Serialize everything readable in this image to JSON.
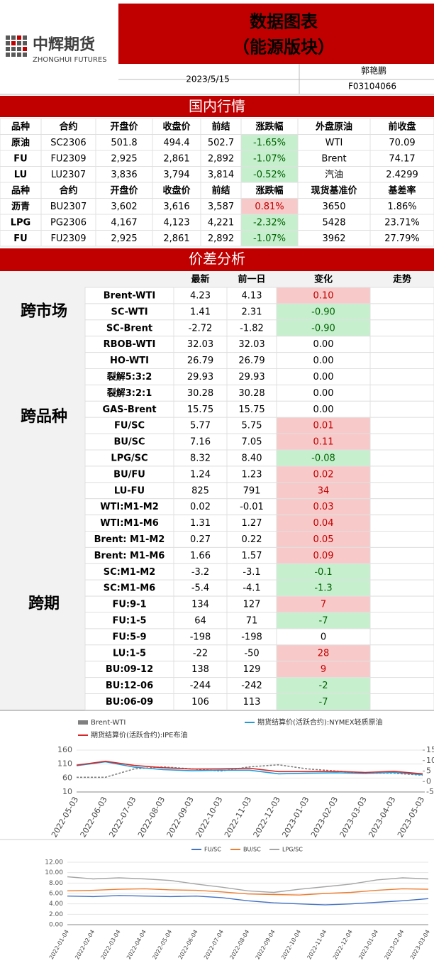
{
  "header": {
    "logo": "中辉期货",
    "logo_en": "ZHONGHUI FUTURES",
    "title": "数据图表",
    "subtitle": "（能源版块）",
    "date": "2023/5/15",
    "author": "郭艳鹏",
    "license": "F03104066"
  },
  "domestic": {
    "title": "国内行情",
    "rows": [
      [
        "品种",
        "合约",
        "开盘价",
        "收盘价",
        "前结",
        "涨跌幅",
        "外盘原油",
        "前收盘"
      ],
      [
        "原油",
        "SC2306",
        "501.8",
        "494.4",
        "502.7",
        "-1.65%",
        "WTI",
        "70.09"
      ],
      [
        "FU",
        "FU2309",
        "2,925",
        "2,861",
        "2,892",
        "-1.07%",
        "Brent",
        "74.17"
      ],
      [
        "LU",
        "LU2307",
        "3,836",
        "3,794",
        "3,814",
        "-0.52%",
        "汽油",
        "2.4299"
      ],
      [
        "品种",
        "合约",
        "开盘价",
        "收盘价",
        "前结",
        "涨跌幅",
        "现货基准价",
        "基差率"
      ],
      [
        "沥青",
        "BU2307",
        "3,602",
        "3,616",
        "3,587",
        "0.81%",
        "3650",
        "1.86%"
      ],
      [
        "LPG",
        "PG2306",
        "4,167",
        "4,123",
        "4,221",
        "-2.32%",
        "5428",
        "23.71%"
      ],
      [
        "FU",
        "FU2309",
        "2,925",
        "2,861",
        "2,892",
        "-1.07%",
        "3962",
        "27.79%"
      ]
    ]
  },
  "spread": {
    "title": "价差分析",
    "header": [
      "最新",
      "前一日",
      "变化",
      "走势"
    ],
    "groups": [
      {
        "label": "跨市场",
        "rows": [
          [
            "Brent-WTI",
            "4.23",
            "4.13",
            "0.10"
          ],
          [
            "SC-WTI",
            "1.41",
            "2.31",
            "-0.90"
          ],
          [
            "SC-Brent",
            "-2.72",
            "-1.82",
            "-0.90"
          ]
        ]
      },
      {
        "label": "跨品种",
        "rows": [
          [
            "RBOB-WTI",
            "32.03",
            "32.03",
            "0.00"
          ],
          [
            "HO-WTI",
            "26.79",
            "26.79",
            "0.00"
          ],
          [
            "裂解5:3:2",
            "29.93",
            "29.93",
            "0.00"
          ],
          [
            "裂解3:2:1",
            "30.28",
            "30.28",
            "0.00"
          ],
          [
            "GAS-Brent",
            "15.75",
            "15.75",
            "0.00"
          ],
          [
            "FU/SC",
            "5.77",
            "5.75",
            "0.01"
          ],
          [
            "BU/SC",
            "7.16",
            "7.05",
            "0.11"
          ],
          [
            "LPG/SC",
            "8.32",
            "8.40",
            "-0.08"
          ],
          [
            "BU/FU",
            "1.24",
            "1.23",
            "0.02"
          ],
          [
            "LU-FU",
            "825",
            "791",
            "34"
          ]
        ]
      },
      {
        "label": "跨期",
        "rows": [
          [
            "WTI:M1-M2",
            "0.02",
            "-0.01",
            "0.03"
          ],
          [
            "WTI:M1-M6",
            "1.31",
            "1.27",
            "0.04"
          ],
          [
            "Brent: M1-M2",
            "0.27",
            "0.22",
            "0.05"
          ],
          [
            "Brent: M1-M6",
            "1.66",
            "1.57",
            "0.09"
          ],
          [
            "SC:M1-M2",
            "-3.2",
            "-3.1",
            "-0.1"
          ],
          [
            "SC:M1-M6",
            "-5.4",
            "-4.1",
            "-1.3"
          ],
          [
            "FU:9-1",
            "134",
            "127",
            "7"
          ],
          [
            "FU:1-5",
            "64",
            "71",
            "-7"
          ],
          [
            "FU:5-9",
            "-198",
            "-198",
            "0"
          ],
          [
            "LU:1-5",
            "-22",
            "-50",
            "28"
          ],
          [
            "BU:09-12",
            "138",
            "129",
            "9"
          ],
          [
            "BU:12-06",
            "-244",
            "-242",
            "-2"
          ],
          [
            "BU:06-09",
            "106",
            "113",
            "-7"
          ]
        ]
      }
    ]
  },
  "chart_data": [
    {
      "type": "line",
      "categories": [
        "2022-05-03",
        "2022-06-03",
        "2022-07-03",
        "2022-08-03",
        "2022-09-03",
        "2022-10-03",
        "2022-11-03",
        "2022-12-03",
        "2023-01-03",
        "2023-02-03",
        "2023-03-03",
        "2023-04-03",
        "2023-05-03"
      ],
      "series": [
        {
          "name": "Brent-WTI",
          "color": "#808080",
          "axis": "y2",
          "values": [
            2,
            2,
            6,
            7,
            6,
            5,
            7,
            8,
            6,
            5,
            4,
            4,
            3
          ]
        },
        {
          "name": "期货结算价(活跃合约):NYMEX轻质原油",
          "color": "#1f9bd7",
          "values": [
            104,
            118,
            99,
            90,
            86,
            88,
            88,
            75,
            77,
            79,
            76,
            80,
            72
          ]
        },
        {
          "name": "期货结算价(活跃合约):IPE布油",
          "color": "#d62728",
          "values": [
            106,
            120,
            105,
            97,
            92,
            93,
            95,
            83,
            83,
            84,
            80,
            84,
            75
          ]
        }
      ],
      "ylim": [
        10,
        160
      ],
      "yticks": [
        10,
        60,
        110,
        160
      ],
      "y2lim": [
        -5,
        15
      ],
      "y2ticks": [
        -5,
        0,
        5,
        10,
        15
      ]
    },
    {
      "type": "line",
      "categories": [
        "2022-01-04",
        "2022-02-04",
        "2022-03-04",
        "2022-04-04",
        "2022-05-04",
        "2022-06-04",
        "2022-07-04",
        "2022-08-04",
        "2022-09-04",
        "2022-10-04",
        "2022-11-04",
        "2022-12-04",
        "2023-01-04",
        "2023-02-04",
        "2023-03-04"
      ],
      "series": [
        {
          "name": "FU/SC",
          "color": "#4472c4",
          "values": [
            5.5,
            5.4,
            5.6,
            5.5,
            5.4,
            5.5,
            5.2,
            4.6,
            4.2,
            4.0,
            3.8,
            4.0,
            4.3,
            4.6,
            5.0
          ]
        },
        {
          "name": "BU/SC",
          "color": "#ed7d31",
          "values": [
            6.5,
            6.6,
            6.8,
            6.9,
            6.7,
            6.6,
            6.3,
            5.9,
            5.8,
            5.7,
            6.0,
            6.2,
            6.6,
            6.9,
            6.8
          ]
        },
        {
          "name": "LPG/SC",
          "color": "#a5a5a5",
          "values": [
            9.2,
            8.8,
            9.0,
            8.8,
            8.5,
            7.8,
            7.2,
            6.5,
            6.2,
            6.8,
            7.3,
            7.8,
            8.6,
            9.0,
            8.8
          ]
        }
      ],
      "ylim": [
        0,
        12
      ],
      "yticks": [
        {
          "value": 0,
          "label": "0.00"
        },
        {
          "value": 2,
          "label": "2.00"
        },
        {
          "value": 4,
          "label": "4.00"
        },
        {
          "value": 6,
          "label": "6.00"
        },
        {
          "value": 8,
          "label": "8.00"
        },
        {
          "value": 10,
          "label": "10.00"
        },
        {
          "value": 12,
          "label": "12.00"
        }
      ]
    }
  ]
}
